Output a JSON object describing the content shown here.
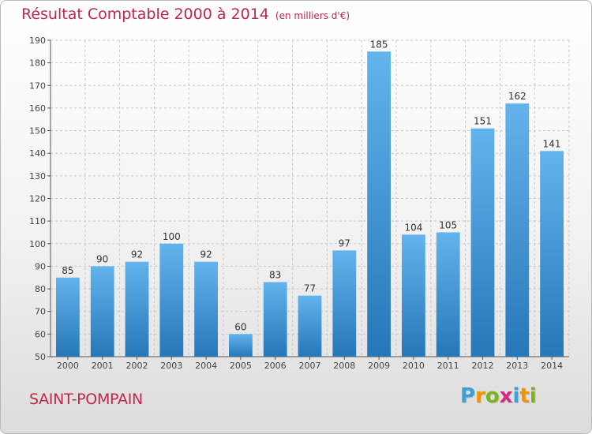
{
  "header": {
    "title": "Résultat Comptable 2000 à 2014",
    "unit": "(en milliers d'€)"
  },
  "commune": "SAINT-POMPAIN",
  "logo": {
    "letters": [
      "P",
      "r",
      "o",
      "x",
      "i",
      "t",
      "i"
    ],
    "colors": [
      "#3aa0d8",
      "#f29400",
      "#7ab51d",
      "#d62a7f",
      "#3aa0d8",
      "#f29400",
      "#7ab51d"
    ]
  },
  "colors": {
    "bar_light": "#63b3ec",
    "bar_dark": "#2577b8",
    "grid": "#c8c8c8",
    "title": "#c0284a"
  },
  "chart_data": {
    "type": "bar",
    "title": "Résultat Comptable 2000 à 2014",
    "subtitle": "(en milliers d'€)",
    "xlabel": "",
    "ylabel": "",
    "categories": [
      "2000",
      "2001",
      "2002",
      "2003",
      "2004",
      "2005",
      "2006",
      "2007",
      "2008",
      "2009",
      "2010",
      "2011",
      "2012",
      "2013",
      "2014"
    ],
    "values": [
      85,
      90,
      92,
      100,
      92,
      60,
      83,
      77,
      97,
      185,
      104,
      105,
      151,
      162,
      141
    ],
    "ylim": [
      50,
      190
    ],
    "yticks": [
      50,
      60,
      70,
      80,
      90,
      100,
      110,
      120,
      130,
      140,
      150,
      160,
      170,
      180,
      190
    ],
    "grid": true,
    "legend": "none"
  }
}
